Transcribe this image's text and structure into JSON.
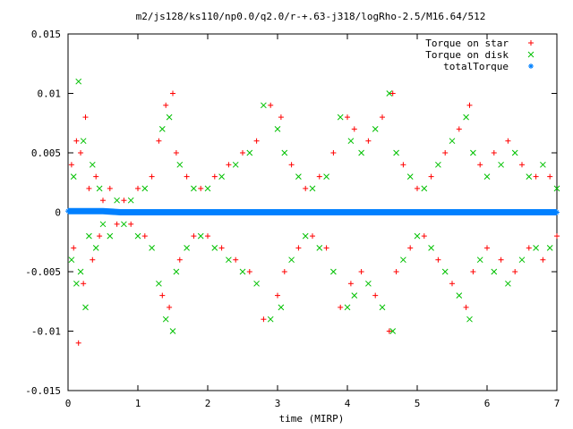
{
  "chart_data": {
    "type": "scatter",
    "title": "m2/js128/ks110/np0.0/q2.0/r-+.63-j318/logRho-2.5/M16.64/512",
    "xlabel": "time (MIRP)",
    "ylabel": "",
    "xlim": [
      0,
      7
    ],
    "ylim": [
      -0.015,
      0.015
    ],
    "xticks": [
      0,
      1,
      2,
      3,
      4,
      5,
      6,
      7
    ],
    "xtick_labels": [
      "0",
      "1",
      "2",
      "3",
      "4",
      "5",
      "6",
      "7"
    ],
    "yticks": [
      -0.015,
      -0.01,
      -0.005,
      0,
      0.005,
      0.01,
      0.015
    ],
    "ytick_labels": [
      "-0.015",
      "-0.01",
      "-0.005",
      "0",
      "0.005",
      "0.01",
      "0.015"
    ],
    "grid": false,
    "legend_position": "top-right",
    "series": [
      {
        "name": "Torque on star",
        "marker": "+",
        "color": "#ff0000",
        "points": [
          [
            0.05,
            0.004
          ],
          [
            0.08,
            -0.003
          ],
          [
            0.12,
            0.006
          ],
          [
            0.15,
            -0.011
          ],
          [
            0.18,
            0.005
          ],
          [
            0.22,
            -0.006
          ],
          [
            0.25,
            0.008
          ],
          [
            0.3,
            0.002
          ],
          [
            0.35,
            -0.004
          ],
          [
            0.4,
            0.003
          ],
          [
            0.45,
            -0.002
          ],
          [
            0.5,
            0.001
          ],
          [
            0.6,
            0.002
          ],
          [
            0.7,
            -0.001
          ],
          [
            0.8,
            0.001
          ],
          [
            0.9,
            -0.001
          ],
          [
            1.0,
            0.002
          ],
          [
            1.1,
            -0.002
          ],
          [
            1.2,
            0.003
          ],
          [
            1.3,
            0.006
          ],
          [
            1.35,
            -0.007
          ],
          [
            1.4,
            0.009
          ],
          [
            1.45,
            -0.008
          ],
          [
            1.5,
            0.01
          ],
          [
            1.55,
            0.005
          ],
          [
            1.6,
            -0.004
          ],
          [
            1.7,
            0.003
          ],
          [
            1.8,
            -0.002
          ],
          [
            1.9,
            0.002
          ],
          [
            2.0,
            -0.002
          ],
          [
            2.1,
            0.003
          ],
          [
            2.2,
            -0.003
          ],
          [
            2.3,
            0.004
          ],
          [
            2.4,
            -0.004
          ],
          [
            2.5,
            0.005
          ],
          [
            2.6,
            -0.005
          ],
          [
            2.7,
            0.006
          ],
          [
            2.8,
            -0.009
          ],
          [
            2.9,
            0.009
          ],
          [
            3.0,
            -0.007
          ],
          [
            3.05,
            0.008
          ],
          [
            3.1,
            -0.005
          ],
          [
            3.2,
            0.004
          ],
          [
            3.3,
            -0.003
          ],
          [
            3.4,
            0.002
          ],
          [
            3.5,
            -0.002
          ],
          [
            3.6,
            0.003
          ],
          [
            3.7,
            -0.003
          ],
          [
            3.8,
            0.005
          ],
          [
            3.9,
            -0.008
          ],
          [
            4.0,
            0.008
          ],
          [
            4.05,
            -0.006
          ],
          [
            4.1,
            0.007
          ],
          [
            4.2,
            -0.005
          ],
          [
            4.3,
            0.006
          ],
          [
            4.4,
            -0.007
          ],
          [
            4.5,
            0.008
          ],
          [
            4.6,
            -0.01
          ],
          [
            4.65,
            0.01
          ],
          [
            4.7,
            -0.005
          ],
          [
            4.8,
            0.004
          ],
          [
            4.9,
            -0.003
          ],
          [
            5.0,
            0.002
          ],
          [
            5.1,
            -0.002
          ],
          [
            5.2,
            0.003
          ],
          [
            5.3,
            -0.004
          ],
          [
            5.4,
            0.005
          ],
          [
            5.5,
            -0.006
          ],
          [
            5.6,
            0.007
          ],
          [
            5.7,
            -0.008
          ],
          [
            5.75,
            0.009
          ],
          [
            5.8,
            -0.005
          ],
          [
            5.9,
            0.004
          ],
          [
            6.0,
            -0.003
          ],
          [
            6.1,
            0.005
          ],
          [
            6.2,
            -0.004
          ],
          [
            6.3,
            0.006
          ],
          [
            6.4,
            -0.005
          ],
          [
            6.5,
            0.004
          ],
          [
            6.6,
            -0.003
          ],
          [
            6.7,
            0.003
          ],
          [
            6.8,
            -0.004
          ],
          [
            6.9,
            0.003
          ],
          [
            7.0,
            -0.002
          ]
        ]
      },
      {
        "name": "Torque on disk",
        "marker": "x",
        "color": "#00c000",
        "points": [
          [
            0.05,
            -0.004
          ],
          [
            0.08,
            0.003
          ],
          [
            0.12,
            -0.006
          ],
          [
            0.15,
            0.011
          ],
          [
            0.18,
            -0.005
          ],
          [
            0.22,
            0.006
          ],
          [
            0.25,
            -0.008
          ],
          [
            0.3,
            -0.002
          ],
          [
            0.35,
            0.004
          ],
          [
            0.4,
            -0.003
          ],
          [
            0.45,
            0.002
          ],
          [
            0.5,
            -0.001
          ],
          [
            0.6,
            -0.002
          ],
          [
            0.7,
            0.001
          ],
          [
            0.8,
            -0.001
          ],
          [
            0.9,
            0.001
          ],
          [
            1.0,
            -0.002
          ],
          [
            1.1,
            0.002
          ],
          [
            1.2,
            -0.003
          ],
          [
            1.3,
            -0.006
          ],
          [
            1.35,
            0.007
          ],
          [
            1.4,
            -0.009
          ],
          [
            1.45,
            0.008
          ],
          [
            1.5,
            -0.01
          ],
          [
            1.55,
            -0.005
          ],
          [
            1.6,
            0.004
          ],
          [
            1.7,
            -0.003
          ],
          [
            1.8,
            0.002
          ],
          [
            1.9,
            -0.002
          ],
          [
            2.0,
            0.002
          ],
          [
            2.1,
            -0.003
          ],
          [
            2.2,
            0.003
          ],
          [
            2.3,
            -0.004
          ],
          [
            2.4,
            0.004
          ],
          [
            2.5,
            -0.005
          ],
          [
            2.6,
            0.005
          ],
          [
            2.7,
            -0.006
          ],
          [
            2.8,
            0.009
          ],
          [
            2.9,
            -0.009
          ],
          [
            3.0,
            0.007
          ],
          [
            3.05,
            -0.008
          ],
          [
            3.1,
            0.005
          ],
          [
            3.2,
            -0.004
          ],
          [
            3.3,
            0.003
          ],
          [
            3.4,
            -0.002
          ],
          [
            3.5,
            0.002
          ],
          [
            3.6,
            -0.003
          ],
          [
            3.7,
            0.003
          ],
          [
            3.8,
            -0.005
          ],
          [
            3.9,
            0.008
          ],
          [
            4.0,
            -0.008
          ],
          [
            4.05,
            0.006
          ],
          [
            4.1,
            -0.007
          ],
          [
            4.2,
            0.005
          ],
          [
            4.3,
            -0.006
          ],
          [
            4.4,
            0.007
          ],
          [
            4.5,
            -0.008
          ],
          [
            4.6,
            0.01
          ],
          [
            4.65,
            -0.01
          ],
          [
            4.7,
            0.005
          ],
          [
            4.8,
            -0.004
          ],
          [
            4.9,
            0.003
          ],
          [
            5.0,
            -0.002
          ],
          [
            5.1,
            0.002
          ],
          [
            5.2,
            -0.003
          ],
          [
            5.3,
            0.004
          ],
          [
            5.4,
            -0.005
          ],
          [
            5.5,
            0.006
          ],
          [
            5.6,
            -0.007
          ],
          [
            5.7,
            0.008
          ],
          [
            5.75,
            -0.009
          ],
          [
            5.8,
            0.005
          ],
          [
            5.9,
            -0.004
          ],
          [
            6.0,
            0.003
          ],
          [
            6.1,
            -0.005
          ],
          [
            6.2,
            0.004
          ],
          [
            6.3,
            -0.006
          ],
          [
            6.4,
            0.005
          ],
          [
            6.5,
            -0.004
          ],
          [
            6.6,
            0.003
          ],
          [
            6.7,
            -0.003
          ],
          [
            6.8,
            0.004
          ],
          [
            6.9,
            -0.003
          ],
          [
            7.0,
            0.002
          ]
        ]
      },
      {
        "name": "totalTorque",
        "marker": "*",
        "color": "#0080ff",
        "points": [
          [
            0.0,
            0.0001
          ],
          [
            0.25,
            0.0001
          ],
          [
            0.5,
            0.0001
          ],
          [
            0.75,
            0.0
          ],
          [
            1.0,
            0.0
          ],
          [
            1.25,
            0.0
          ],
          [
            1.5,
            0.0
          ],
          [
            1.75,
            0.0
          ],
          [
            2.0,
            0.0
          ],
          [
            2.25,
            0.0
          ],
          [
            2.5,
            0.0
          ],
          [
            2.75,
            0.0
          ],
          [
            3.0,
            0.0
          ],
          [
            3.25,
            0.0
          ],
          [
            3.5,
            0.0
          ],
          [
            3.75,
            0.0
          ],
          [
            4.0,
            0.0
          ],
          [
            4.25,
            0.0
          ],
          [
            4.5,
            0.0
          ],
          [
            4.75,
            0.0
          ],
          [
            5.0,
            0.0
          ],
          [
            5.25,
            0.0
          ],
          [
            5.5,
            0.0
          ],
          [
            5.75,
            0.0
          ],
          [
            6.0,
            0.0
          ],
          [
            6.25,
            0.0
          ],
          [
            6.5,
            0.0
          ],
          [
            6.75,
            0.0
          ],
          [
            7.0,
            0.0
          ]
        ]
      }
    ]
  }
}
